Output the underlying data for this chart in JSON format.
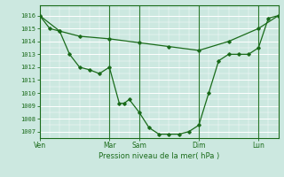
{
  "bg_color": "#cce8e0",
  "grid_color": "#b8d8d0",
  "line_color": "#1a6b1a",
  "ylim": [
    1006.5,
    1016.8
  ],
  "yticks": [
    1007,
    1008,
    1009,
    1010,
    1011,
    1012,
    1013,
    1014,
    1015,
    1016
  ],
  "xlabel": "Pression niveau de la mer( hPa )",
  "xlim": [
    0,
    48
  ],
  "xtick_positions": [
    0,
    14,
    20,
    32,
    44
  ],
  "xtick_labels": [
    "Ven",
    "Mar",
    "Sam",
    "Dim",
    "Lun"
  ],
  "vline_positions": [
    14,
    20,
    32,
    44
  ],
  "line1_x": [
    0,
    4,
    8,
    14,
    20,
    26,
    32,
    38,
    44,
    48
  ],
  "line1_y": [
    1016.0,
    1014.8,
    1014.4,
    1014.2,
    1013.9,
    1013.6,
    1013.3,
    1014.0,
    1015.0,
    1016.0
  ],
  "line2_x": [
    0,
    2,
    4,
    6,
    8,
    10,
    12,
    14,
    16,
    17,
    18,
    20,
    22,
    24,
    26,
    28,
    30,
    32,
    34,
    36,
    38,
    40,
    42,
    44,
    46,
    48
  ],
  "line2_y": [
    1016.0,
    1015.0,
    1014.8,
    1013.0,
    1012.0,
    1011.8,
    1011.5,
    1012.0,
    1009.2,
    1009.2,
    1009.5,
    1008.5,
    1007.3,
    1006.8,
    1006.8,
    1006.8,
    1007.0,
    1007.5,
    1010.0,
    1012.5,
    1013.0,
    1013.0,
    1013.0,
    1013.5,
    1015.8,
    1016.0
  ]
}
